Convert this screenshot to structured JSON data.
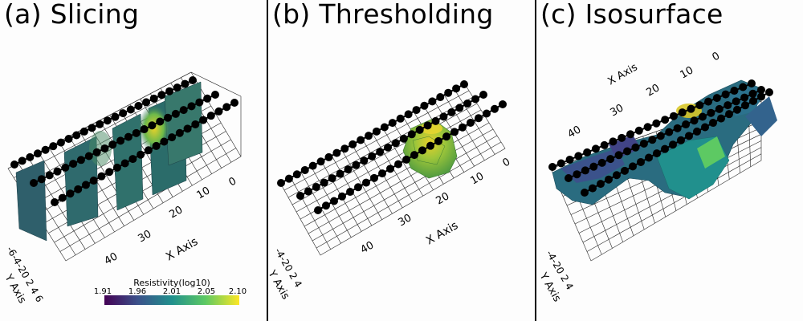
{
  "panels": [
    {
      "title": "(a) Slicing",
      "x_axis_label": "X Axis",
      "y_axis_label": "Y Axis",
      "x_ticks": [
        "0",
        "10",
        "20",
        "30",
        "40"
      ],
      "y_ticks": "-6-4-20 2 4 6",
      "colorbar": {
        "title": "Resistivity(log10)",
        "ticks": [
          "1.91",
          "1.96",
          "2.01",
          "2.05",
          "2.10"
        ],
        "colors": [
          "#440154",
          "#3b528b",
          "#21908d",
          "#5dc963",
          "#fde725"
        ]
      }
    },
    {
      "title": "(b) Thresholding",
      "x_axis_label": "X Axis",
      "y_axis_label": "Y Axis",
      "x_ticks": [
        "0",
        "10",
        "20",
        "30",
        "40"
      ],
      "y_ticks": "-4-20 2 4"
    },
    {
      "title": "(c) Isosurface",
      "x_axis_label": "X Axis",
      "y_axis_label": "Y Axis",
      "x_ticks": [
        "0",
        "10",
        "20",
        "30",
        "40"
      ],
      "y_ticks": "-4-20 2 4"
    }
  ]
}
